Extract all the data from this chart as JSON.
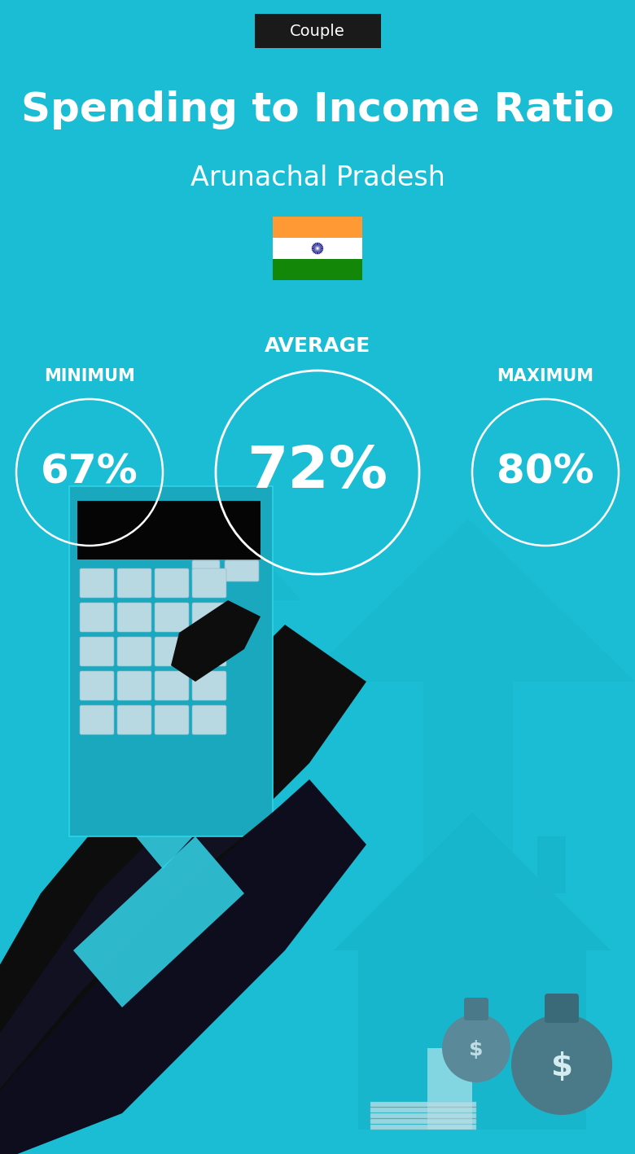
{
  "title": "Spending to Income Ratio",
  "subtitle": "Arunachal Pradesh",
  "tag": "Couple",
  "bg_color": "#1bbdd4",
  "tag_bg": "#1a1a1a",
  "tag_text_color": "#ffffff",
  "title_color": "#ffffff",
  "subtitle_color": "#ffffff",
  "min_label": "MINIMUM",
  "avg_label": "AVERAGE",
  "max_label": "MAXIMUM",
  "min_value": "67%",
  "avg_value": "72%",
  "max_value": "80%",
  "circle_color": "#ffffff",
  "text_color": "#ffffff",
  "label_color": "#ffffff",
  "arrow_color": "#17aec6",
  "house_color": "#18b5cc",
  "bag_color": "#4a8a9a",
  "dark_color": "#0d0d0d",
  "calc_color": "#1aa8bf",
  "cuff_color": "#33d6ea"
}
